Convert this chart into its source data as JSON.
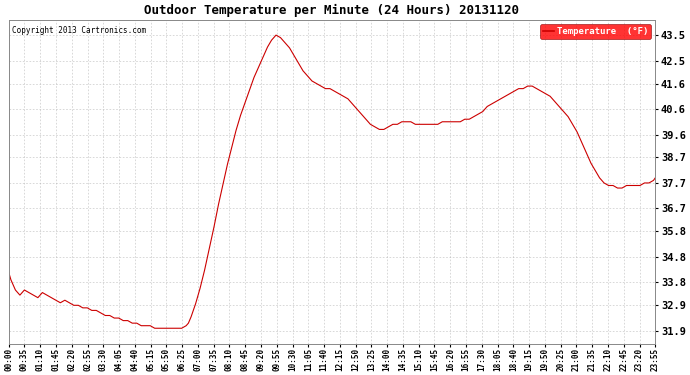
{
  "title": "Outdoor Temperature per Minute (24 Hours) 20131120",
  "copyright": "Copyright 2013 Cartronics.com",
  "legend_label": "Temperature  (°F)",
  "line_color": "#cc0000",
  "bg_color": "#ffffff",
  "grid_color": "#aaaaaa",
  "yticks": [
    31.9,
    32.9,
    33.8,
    34.8,
    35.8,
    36.7,
    37.7,
    38.7,
    39.6,
    40.6,
    41.6,
    42.5,
    43.5
  ],
  "ymin": 31.4,
  "ymax": 44.1,
  "xtick_labels": [
    "00:00",
    "00:35",
    "01:10",
    "01:45",
    "02:20",
    "02:55",
    "03:30",
    "04:05",
    "04:40",
    "05:15",
    "05:50",
    "06:25",
    "07:00",
    "07:35",
    "08:10",
    "08:45",
    "09:20",
    "09:55",
    "10:30",
    "11:05",
    "11:40",
    "12:15",
    "12:50",
    "13:25",
    "14:00",
    "14:35",
    "15:10",
    "15:45",
    "16:20",
    "16:55",
    "17:30",
    "18:05",
    "18:40",
    "19:15",
    "19:50",
    "20:25",
    "21:00",
    "21:35",
    "22:10",
    "22:45",
    "23:20",
    "23:55"
  ],
  "key_points_minutes": [
    0,
    5,
    15,
    25,
    35,
    45,
    55,
    65,
    75,
    85,
    95,
    105,
    115,
    125,
    135,
    145,
    155,
    165,
    175,
    185,
    195,
    205,
    215,
    225,
    235,
    245,
    255,
    265,
    275,
    285,
    295,
    305,
    315,
    325,
    335,
    345,
    355,
    365,
    375,
    385,
    395,
    400,
    405,
    415,
    425,
    435,
    445,
    455,
    465,
    475,
    485,
    495,
    505,
    515,
    525,
    535,
    545,
    555,
    565,
    575,
    585,
    595,
    605,
    615,
    625,
    635,
    645,
    655,
    665,
    675,
    685,
    695,
    705,
    715,
    725,
    735,
    745,
    755,
    765,
    775,
    785,
    795,
    805,
    815,
    825,
    835,
    845,
    855,
    865,
    875,
    885,
    895,
    905,
    915,
    925,
    935,
    945,
    955,
    965,
    975,
    985,
    995,
    1005,
    1015,
    1025,
    1035,
    1045,
    1055,
    1065,
    1075,
    1085,
    1095,
    1105,
    1115,
    1125,
    1135,
    1145,
    1155,
    1165,
    1175,
    1185,
    1195,
    1205,
    1215,
    1225,
    1235,
    1245,
    1255,
    1265,
    1275,
    1285,
    1295,
    1305,
    1315,
    1325,
    1335,
    1345,
    1355,
    1365,
    1375,
    1385,
    1395,
    1405,
    1415,
    1425,
    1435,
    1439
  ],
  "key_points_temps": [
    34.2,
    33.9,
    33.5,
    33.3,
    33.5,
    33.4,
    33.3,
    33.2,
    33.4,
    33.3,
    33.2,
    33.1,
    33.0,
    33.1,
    33.0,
    32.9,
    32.9,
    32.8,
    32.8,
    32.7,
    32.7,
    32.6,
    32.5,
    32.5,
    32.4,
    32.4,
    32.3,
    32.3,
    32.2,
    32.2,
    32.1,
    32.1,
    32.1,
    32.0,
    32.0,
    32.0,
    32.0,
    32.0,
    32.0,
    32.0,
    32.1,
    32.2,
    32.4,
    32.9,
    33.5,
    34.2,
    35.0,
    35.8,
    36.7,
    37.5,
    38.3,
    39.0,
    39.7,
    40.3,
    40.8,
    41.3,
    41.8,
    42.2,
    42.6,
    43.0,
    43.3,
    43.5,
    43.4,
    43.2,
    43.0,
    42.7,
    42.4,
    42.1,
    41.9,
    41.7,
    41.6,
    41.5,
    41.4,
    41.4,
    41.3,
    41.2,
    41.1,
    41.0,
    40.8,
    40.6,
    40.4,
    40.2,
    40.0,
    39.9,
    39.8,
    39.8,
    39.9,
    40.0,
    40.0,
    40.1,
    40.1,
    40.1,
    40.0,
    40.0,
    40.0,
    40.0,
    40.0,
    40.0,
    40.1,
    40.1,
    40.1,
    40.1,
    40.1,
    40.2,
    40.2,
    40.3,
    40.4,
    40.5,
    40.7,
    40.8,
    40.9,
    41.0,
    41.1,
    41.2,
    41.3,
    41.4,
    41.4,
    41.5,
    41.5,
    41.4,
    41.3,
    41.2,
    41.1,
    40.9,
    40.7,
    40.5,
    40.3,
    40.0,
    39.7,
    39.3,
    38.9,
    38.5,
    38.2,
    37.9,
    37.7,
    37.6,
    37.6,
    37.5,
    37.5,
    37.6,
    37.6,
    37.6,
    37.6,
    37.7,
    37.7,
    37.8,
    37.9
  ]
}
